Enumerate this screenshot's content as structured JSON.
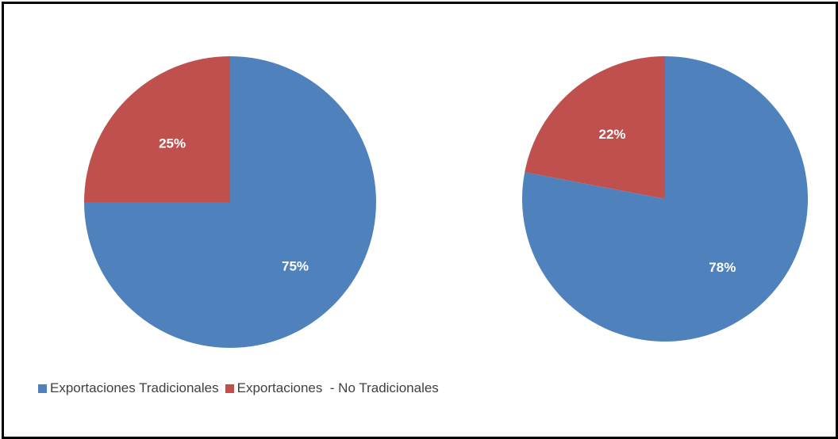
{
  "chart_data": [
    {
      "type": "pie",
      "categories": [
        "Exportaciones Tradicionales",
        "Exportaciones  - No Tradicionales"
      ],
      "values": [
        75,
        25
      ],
      "labels": [
        "75%",
        "25%"
      ],
      "colors": [
        "#4F81BD",
        "#C0504D"
      ],
      "start": "12 o'clock",
      "direction": "clockwise"
    },
    {
      "type": "pie",
      "categories": [
        "Exportaciones Tradicionales",
        "Exportaciones  - No Tradicionales"
      ],
      "values": [
        78,
        22
      ],
      "labels": [
        "78%",
        "22%"
      ],
      "colors": [
        "#4F81BD",
        "#C0504D"
      ],
      "start": "12 o'clock",
      "direction": "clockwise"
    }
  ],
  "legend": {
    "placement": "bottom-left",
    "items": [
      {
        "label": "Exportaciones Tradicionales",
        "color": "#4F81BD"
      },
      {
        "label": "Exportaciones  - No Tradicionales",
        "color": "#C0504D"
      }
    ]
  }
}
